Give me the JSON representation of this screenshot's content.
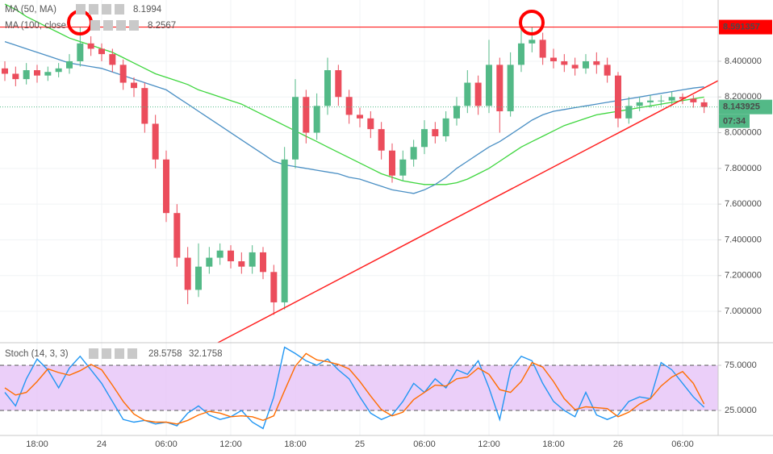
{
  "chart_data": [
    {
      "type": "candlestick",
      "categories": [
        null,
        null,
        null,
        "18:00",
        null,
        null,
        null,
        null,
        null,
        "24",
        null,
        null,
        null,
        null,
        null,
        "06:00",
        null,
        null,
        null,
        null,
        null,
        "12:00",
        null,
        null,
        null,
        null,
        null,
        "18:00",
        null,
        null,
        null,
        null,
        null,
        "25",
        null,
        null,
        null,
        null,
        null,
        "06:00",
        null,
        null,
        null,
        null,
        null,
        "12:00",
        null,
        null,
        null,
        null,
        null,
        "18:00",
        null,
        null,
        null,
        null,
        null,
        "26",
        null,
        null,
        null,
        null,
        null,
        "06:00",
        null,
        null
      ],
      "open": [
        8.36,
        8.33,
        8.3,
        8.35,
        8.32,
        8.34,
        8.36,
        8.4,
        8.5,
        8.47,
        8.44,
        8.38,
        8.28,
        8.25,
        8.05,
        7.85,
        7.55,
        7.3,
        7.12,
        7.25,
        7.3,
        7.34,
        7.28,
        7.25,
        7.33,
        7.22,
        7.05,
        7.85,
        8.2,
        8.0,
        8.15,
        8.35,
        8.2,
        8.1,
        8.08,
        8.02,
        7.9,
        7.76,
        7.85,
        7.92,
        8.02,
        7.98,
        8.08,
        8.15,
        8.28,
        8.15,
        8.38,
        8.12,
        8.38,
        8.5,
        8.52,
        8.42,
        8.4,
        8.38,
        8.36,
        8.4,
        8.38,
        8.32,
        8.08,
        8.15,
        8.17,
        8.18,
        8.18,
        8.2,
        8.19,
        8.17
      ],
      "high": [
        8.4,
        8.37,
        8.39,
        8.38,
        8.37,
        8.39,
        8.44,
        8.59,
        8.54,
        8.5,
        8.47,
        8.41,
        8.31,
        8.28,
        8.1,
        7.9,
        7.6,
        7.36,
        7.38,
        7.36,
        7.38,
        7.37,
        7.33,
        7.37,
        7.36,
        7.26,
        7.92,
        8.3,
        8.24,
        8.22,
        8.42,
        8.38,
        8.24,
        8.14,
        8.12,
        8.06,
        7.94,
        7.9,
        7.96,
        8.07,
        8.06,
        8.12,
        8.2,
        8.35,
        8.32,
        8.52,
        8.42,
        8.45,
        8.58,
        8.59,
        8.56,
        8.47,
        8.44,
        8.42,
        8.44,
        8.45,
        8.42,
        8.34,
        8.2,
        8.2,
        8.21,
        8.21,
        8.23,
        8.22,
        8.21,
        8.19
      ],
      "low": [
        8.29,
        8.26,
        8.27,
        8.28,
        8.29,
        8.31,
        8.33,
        8.37,
        8.43,
        8.4,
        8.34,
        8.24,
        8.2,
        8.0,
        7.8,
        7.5,
        7.25,
        7.04,
        7.08,
        7.21,
        7.26,
        7.24,
        7.21,
        7.21,
        7.18,
        6.98,
        7.01,
        7.8,
        7.94,
        7.96,
        8.1,
        8.15,
        8.05,
        8.03,
        7.97,
        7.85,
        7.72,
        7.73,
        7.81,
        7.88,
        7.94,
        7.95,
        8.04,
        8.11,
        8.1,
        8.11,
        8.0,
        8.09,
        8.34,
        8.45,
        8.38,
        8.36,
        8.34,
        8.32,
        8.33,
        8.33,
        8.28,
        8.03,
        8.05,
        8.12,
        8.14,
        8.15,
        8.15,
        8.16,
        8.14,
        8.11
      ],
      "close": [
        8.33,
        8.3,
        8.35,
        8.32,
        8.34,
        8.36,
        8.4,
        8.5,
        8.47,
        8.44,
        8.38,
        8.28,
        8.25,
        8.05,
        7.85,
        7.55,
        7.3,
        7.12,
        7.25,
        7.3,
        7.34,
        7.28,
        7.25,
        7.33,
        7.22,
        7.05,
        7.85,
        8.2,
        8.0,
        8.15,
        8.35,
        8.2,
        8.1,
        8.08,
        8.02,
        7.9,
        7.76,
        7.85,
        7.92,
        8.02,
        7.98,
        8.08,
        8.15,
        8.28,
        8.15,
        8.38,
        8.12,
        8.38,
        8.5,
        8.52,
        8.42,
        8.4,
        8.38,
        8.36,
        8.4,
        8.38,
        8.32,
        8.08,
        8.15,
        8.17,
        8.18,
        8.18,
        8.2,
        8.19,
        8.17,
        8.143925
      ],
      "up_color": "#53b987",
      "down_color": "#eb4d5c",
      "series": [
        {
          "name": "MA (50, MA)",
          "color": "#3ed63e",
          "values": [
            8.72,
            8.69,
            8.65,
            8.62,
            8.59,
            8.56,
            8.53,
            8.51,
            8.49,
            8.47,
            8.45,
            8.42,
            8.39,
            8.36,
            8.33,
            8.31,
            8.29,
            8.27,
            8.24,
            8.22,
            8.2,
            8.18,
            8.16,
            8.13,
            8.1,
            8.07,
            8.04,
            8.01,
            7.98,
            7.95,
            7.92,
            7.89,
            7.86,
            7.83,
            7.8,
            7.77,
            7.75,
            7.73,
            7.72,
            7.71,
            7.71,
            7.71,
            7.72,
            7.74,
            7.77,
            7.8,
            7.84,
            7.88,
            7.92,
            7.95,
            7.98,
            8.01,
            8.04,
            8.06,
            8.08,
            8.1,
            8.11,
            8.12,
            8.13,
            8.14,
            8.15,
            8.16,
            8.17,
            8.18,
            8.19,
            8.1994
          ]
        },
        {
          "name": "MA (100, close",
          "color": "#4a8fc4",
          "values": [
            8.51,
            8.49,
            8.47,
            8.45,
            8.43,
            8.41,
            8.39,
            8.38,
            8.37,
            8.36,
            8.34,
            8.32,
            8.3,
            8.28,
            8.26,
            8.24,
            8.2,
            8.16,
            8.12,
            8.08,
            8.04,
            8.0,
            7.96,
            7.92,
            7.88,
            7.84,
            7.82,
            7.81,
            7.8,
            7.79,
            7.78,
            7.77,
            7.75,
            7.74,
            7.72,
            7.7,
            7.68,
            7.67,
            7.66,
            7.68,
            7.71,
            7.75,
            7.8,
            7.84,
            7.88,
            7.92,
            7.95,
            7.99,
            8.03,
            8.07,
            8.1,
            8.12,
            8.13,
            8.14,
            8.15,
            8.16,
            8.17,
            8.18,
            8.19,
            8.2,
            8.21,
            8.22,
            8.23,
            8.24,
            8.25,
            8.2567
          ]
        }
      ],
      "ylim": [
        6.824,
        8.743
      ],
      "yticks": [
        {
          "value": 8.4,
          "label": "8.400000"
        },
        {
          "value": 8.2,
          "label": "8.200000"
        },
        {
          "value": 8.0,
          "label": "8.000000"
        },
        {
          "value": 7.8,
          "label": "7.800000"
        },
        {
          "value": 7.6,
          "label": "7.600000"
        },
        {
          "value": 7.4,
          "label": "7.400000"
        },
        {
          "value": 7.2,
          "label": "7.200000"
        },
        {
          "value": 7.0,
          "label": "7.000000"
        }
      ],
      "price_line": {
        "value": 8.591357,
        "color": "#ff0000"
      },
      "countdown": "07:34",
      "grid": true
    },
    {
      "type": "line",
      "title": "Stoch (14, 3, 3)",
      "series": [
        {
          "color": "#2196f3",
          "values": [
            45,
            30,
            60,
            82,
            70,
            50,
            72,
            85,
            70,
            55,
            35,
            15,
            12,
            14,
            10,
            12,
            8,
            22,
            30,
            20,
            15,
            18,
            25,
            12,
            5,
            40,
            95,
            88,
            80,
            75,
            82,
            70,
            60,
            40,
            22,
            15,
            20,
            35,
            55,
            45,
            60,
            50,
            70,
            65,
            80,
            50,
            15,
            70,
            85,
            80,
            55,
            35,
            25,
            18,
            45,
            20,
            15,
            20,
            35,
            40,
            38,
            78,
            70,
            55,
            40,
            28.5758
          ]
        },
        {
          "color": "#ff6d00",
          "values": [
            50,
            42,
            45,
            57,
            71,
            67,
            64,
            69,
            76,
            70,
            53,
            35,
            21,
            14,
            12,
            12,
            10,
            14,
            20,
            24,
            22,
            18,
            19,
            18,
            14,
            19,
            47,
            74,
            88,
            81,
            79,
            76,
            71,
            57,
            41,
            26,
            19,
            23,
            37,
            45,
            53,
            52,
            60,
            62,
            72,
            65,
            48,
            45,
            57,
            78,
            73,
            57,
            38,
            26,
            29,
            28,
            27,
            18,
            23,
            32,
            38,
            52,
            62,
            68,
            55,
            32.1758
          ]
        }
      ],
      "ylim": [
        -2.7,
        100
      ],
      "yticks": [
        {
          "value": 75,
          "label": "75.0000"
        },
        {
          "value": 25,
          "label": "25.0000"
        }
      ],
      "band_color": "#e6c3f7"
    }
  ]
}
